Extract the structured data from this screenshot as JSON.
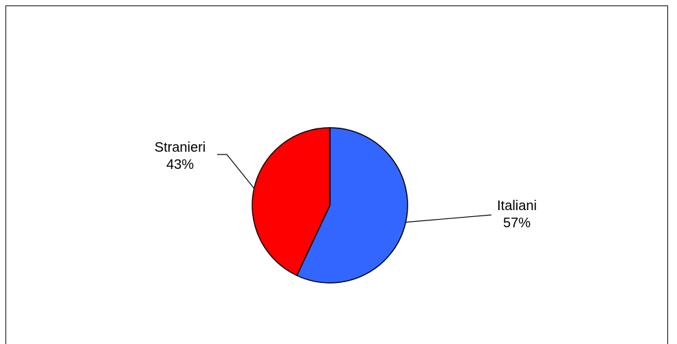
{
  "chart_data": {
    "type": "pie",
    "title": "",
    "start_angle_deg": 0,
    "direction": "clockwise",
    "slices": [
      {
        "label": "Italiani",
        "value": 57,
        "value_text": "57%",
        "color": "#3366FF"
      },
      {
        "label": "Stranieri",
        "value": 43,
        "value_text": "43%",
        "color": "#FF0000"
      }
    ],
    "legend": "none",
    "data_labels": "category and percent, outside with leader lines"
  }
}
